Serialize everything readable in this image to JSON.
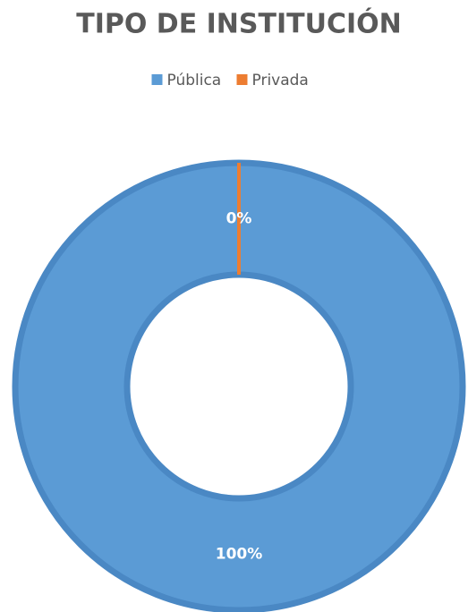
{
  "chart_data": {
    "type": "donut",
    "title": "TIPO DE INSTITUCIÓN",
    "categories": [
      "Pública",
      "Privada"
    ],
    "values": [
      100,
      0
    ],
    "value_labels": [
      "100%",
      "0%"
    ],
    "colors": [
      "#5b9bd5",
      "#ed7d31"
    ],
    "legend": "top"
  }
}
